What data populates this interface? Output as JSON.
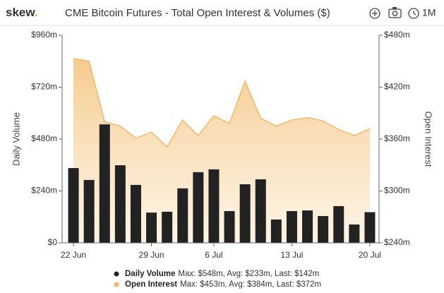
{
  "header": {
    "logo": "skew",
    "logo_dot": ".",
    "range": "1M"
  },
  "chart_data": {
    "type": "bar",
    "title": "CME Bitcoin Futures - Total Open Interest & Volumes ($)",
    "y_label": "Daily Volume",
    "y2_label": "Open Interest",
    "categories": [
      "22 Jun",
      null,
      null,
      null,
      null,
      "29 Jun",
      null,
      null,
      null,
      "6 Jul",
      null,
      null,
      null,
      null,
      "13 Jul",
      null,
      null,
      null,
      null,
      "20 Jul"
    ],
    "ylim": [
      0,
      960
    ],
    "yticks": [
      {
        "value": 0,
        "label": "$0"
      },
      {
        "value": 240,
        "label": "$240m"
      },
      {
        "value": 480,
        "label": "$480m"
      },
      {
        "value": 720,
        "label": "$720m"
      },
      {
        "value": 960,
        "label": "$960m"
      }
    ],
    "y2lim": [
      240,
      480
    ],
    "y2ticks": [
      {
        "value": 240,
        "label": "$240m"
      },
      {
        "value": 300,
        "label": "$300m"
      },
      {
        "value": 360,
        "label": "$360m"
      },
      {
        "value": 420,
        "label": "$420m"
      },
      {
        "value": 480,
        "label": "$480m"
      }
    ],
    "series": [
      {
        "name": "Daily Volume",
        "type": "bar",
        "color": "#222222",
        "axis": "y",
        "stats": "Max: $548m, Avg: $233m, Last: $142m",
        "values": [
          346,
          291,
          548,
          359,
          268,
          140,
          144,
          252,
          327,
          340,
          147,
          271,
          294,
          108,
          147,
          150,
          124,
          170,
          85,
          142
        ]
      },
      {
        "name": "Open Interest",
        "type": "area",
        "color": "#f2b866",
        "axis": "y2",
        "stats": "Max: $453m, Avg: $384m, Last: $372m",
        "values": [
          453,
          450,
          380,
          375,
          361,
          368,
          351,
          382,
          364,
          387,
          378,
          427,
          384,
          375,
          382,
          385,
          381,
          371,
          364,
          372
        ]
      }
    ]
  }
}
